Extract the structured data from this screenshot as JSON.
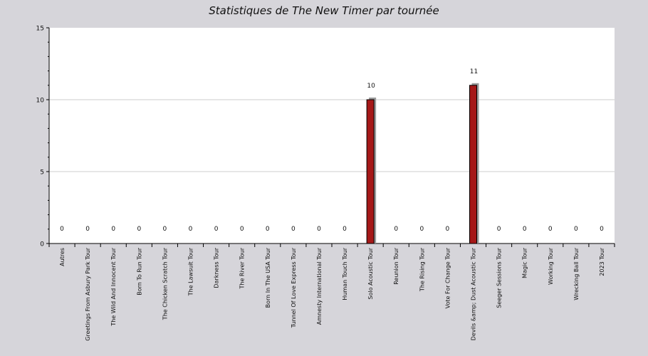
{
  "chart_data": {
    "type": "bar",
    "title": "Statistiques de The New Timer par tournée",
    "xlabel": "",
    "ylabel": "",
    "ylim": [
      0,
      15
    ],
    "yticks": [
      0,
      5,
      10,
      15
    ],
    "grid": true,
    "categories": [
      "Autres",
      "Greetings From Asbury Park Tour",
      "The Wild And Innocent Tour",
      "Born To Run Tour",
      "The Chicken Scratch Tour",
      "The Lawsuit Tour",
      "Darkness Tour",
      "The River Tour",
      "Born In The USA Tour",
      "Tunnel Of Love Express Tour",
      "Amnesty International Tour",
      "Human Touch Tour",
      "Solo Acoustic Tour",
      "Reunion Tour",
      "The Rising Tour",
      "Vote For Change Tour",
      "Devils &amp; Dust Acoustic Tour",
      "Seeger Sessions Tour",
      "Magic Tour",
      "Working Tour",
      "Wrecking Ball Tour",
      "2023 Tour"
    ],
    "values": [
      0,
      0,
      0,
      0,
      0,
      0,
      0,
      0,
      0,
      0,
      0,
      0,
      10,
      0,
      0,
      0,
      11,
      0,
      0,
      0,
      0,
      0
    ],
    "colors": {
      "background": "#d6d5da",
      "plot": "#ffffff",
      "bar": "#a51818",
      "shadow": "#9a9a9a",
      "grid": "#cccccc"
    }
  }
}
